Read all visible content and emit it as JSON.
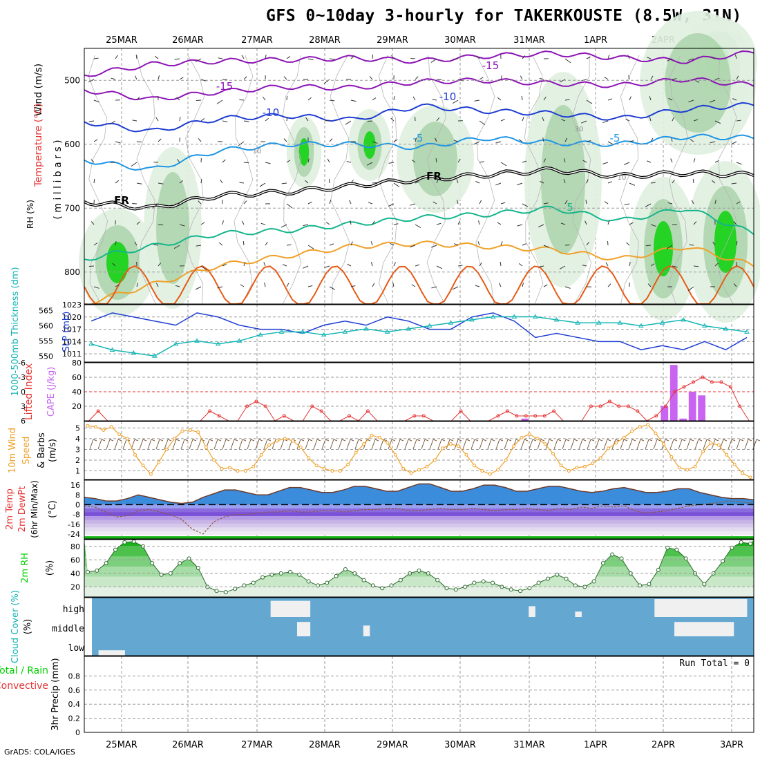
{
  "title": "GFS 0~10day 3-hourly for TAKERKOUSTE (8.5W, 31N)",
  "credit": "GrADS: COLA/IGES",
  "colors": {
    "purple": "#8c14b4",
    "blue": "#1e3cd2",
    "lightblue": "#1e96e6",
    "teal": "#14b48c",
    "orange": "#f0a028",
    "darkorange": "#e65a14",
    "rh_green": "#00d200",
    "rh_light": "#e0efe0",
    "slp": "#1e3cd2",
    "thick": "#14b4b4",
    "li": "#e63232",
    "cape": "#c864f0",
    "wind": "#f0a028",
    "temp_fill": "#3c8cdc",
    "cloud_bg": "#64a8d2"
  },
  "chart_data": [
    {
      "id": "cross_section",
      "type": "contour",
      "title": "Wind (m/s) / Temperature (°C) / RH (%)",
      "ylabel_wind": "Wind (m/s)",
      "ylabel_temp": "Temperature (°C)",
      "ylabel_rh": "RH (%)",
      "ylabel_units": "( m i l l i b a r s )",
      "yticks": [
        500,
        600,
        700,
        800
      ],
      "ylim": [
        850,
        450
      ],
      "x_dates": [
        "25MAR",
        "26MAR",
        "27MAR",
        "28MAR",
        "29MAR",
        "30MAR",
        "31MAR",
        "1APR",
        "2APR",
        "3APR"
      ],
      "contour_labels": [
        "-15",
        "-15",
        "-10",
        "-10",
        "-5",
        "-5",
        "FR",
        "FR",
        "5",
        "10",
        "30",
        "10"
      ],
      "isotherms": [
        {
          "name": "-15",
          "color": "purple",
          "p": [
            492,
            475,
            470,
            468,
            465,
            470,
            462,
            458,
            465,
            470,
            456
          ]
        },
        {
          "name": "-15b",
          "color": "purple",
          "p": [
            515,
            530,
            518,
            510,
            512,
            502,
            500,
            505,
            508,
            498,
            508
          ]
        },
        {
          "name": "-10",
          "color": "blue",
          "p": [
            565,
            580,
            560,
            555,
            562,
            540,
            548,
            552,
            560,
            545,
            538
          ]
        },
        {
          "name": "-5",
          "color": "lightblue",
          "p": [
            625,
            640,
            610,
            600,
            600,
            605,
            590,
            598,
            600,
            588,
            590
          ]
        },
        {
          "name": "FR",
          "color": "black",
          "p": [
            690,
            700,
            680,
            675,
            665,
            655,
            648,
            640,
            650,
            645,
            648
          ]
        },
        {
          "name": "5",
          "color": "teal",
          "p": [
            780,
            760,
            740,
            735,
            725,
            715,
            710,
            700,
            720,
            700,
            740
          ]
        },
        {
          "name": "10",
          "color": "orange",
          "p": [
            850,
            820,
            790,
            775,
            760,
            755,
            760,
            765,
            780,
            760,
            790
          ]
        }
      ]
    },
    {
      "id": "slp_thickness",
      "type": "line",
      "ylabel_left": "1000-500mb Thickness (dm)",
      "ylabel_right": "SLP (mb)",
      "y_left_ticks": [
        550,
        555,
        560,
        565
      ],
      "y_right_ticks": [
        1011,
        1014,
        1017,
        1020,
        1023
      ],
      "series": [
        {
          "name": "SLP",
          "color": "slp",
          "axis": "right",
          "values": [
            1019,
            1021,
            1020,
            1019,
            1018,
            1021,
            1020,
            1018,
            1017,
            1017,
            1016,
            1018,
            1019,
            1018,
            1020,
            1019,
            1017,
            1017,
            1020,
            1021,
            1019,
            1015,
            1016,
            1015,
            1014,
            1014,
            1012,
            1013,
            1012,
            1014,
            1012,
            1015
          ]
        },
        {
          "name": "Thickness",
          "color": "thick",
          "axis": "left",
          "values": [
            554,
            552,
            551,
            550,
            554,
            555,
            554,
            555,
            557,
            558,
            558,
            557,
            558,
            559,
            558,
            559,
            560,
            561,
            562,
            563,
            563,
            563,
            562,
            561,
            561,
            561,
            560,
            561,
            562,
            560,
            559,
            558
          ]
        }
      ]
    },
    {
      "id": "li_cape",
      "type": "line_bar",
      "ylabel_left": "Lifted Index",
      "ylabel_right": "CAPE (J/kg)",
      "y_left_ticks": [
        "-6",
        "-3",
        "0",
        "3",
        "6"
      ],
      "y_right_ticks": [
        20,
        40,
        60,
        80
      ],
      "li_values": [
        6,
        4,
        6,
        6,
        6,
        6,
        6,
        6,
        6,
        6,
        6,
        6,
        6,
        4,
        5,
        6,
        6,
        3,
        2,
        3,
        6,
        5,
        6,
        6,
        3,
        4,
        6,
        6,
        5,
        6,
        4,
        6,
        6,
        6,
        6,
        5,
        5,
        6,
        6,
        6,
        4,
        6,
        6,
        6,
        5,
        4,
        5,
        5,
        5,
        5,
        4,
        6,
        6,
        6,
        3,
        3,
        2,
        3,
        3,
        4,
        6,
        5,
        3,
        0,
        -1,
        -2,
        -3,
        -2,
        -2,
        -1,
        3,
        6
      ],
      "cape_bars": [
        {
          "i": 47,
          "v": 3
        },
        {
          "i": 62,
          "v": 20
        },
        {
          "i": 63,
          "v": 77
        },
        {
          "i": 64,
          "v": 3
        },
        {
          "i": 65,
          "v": 40
        },
        {
          "i": 66,
          "v": 35
        }
      ]
    },
    {
      "id": "wind10m",
      "type": "line",
      "ylabel": "10m Wind Speed & Barbs (m/s)",
      "yticks": [
        1,
        2,
        3,
        4,
        5
      ],
      "values": [
        5.2,
        5.1,
        4.8,
        5.1,
        4.4,
        4.0,
        2.5,
        1.5,
        0.7,
        1.8,
        3.0,
        4.0,
        4.7,
        4.8,
        4.6,
        3.2,
        2.0,
        1.2,
        1.3,
        1.0,
        1.0,
        1.4,
        2.5,
        3.4,
        3.8,
        4.0,
        3.8,
        3.2,
        2.2,
        1.5,
        1.2,
        1.0,
        1.0,
        1.6,
        2.7,
        3.5,
        4.3,
        4.1,
        3.6,
        2.5,
        1.2,
        0.8,
        1.1,
        1.4,
        2.0,
        3.1,
        3.5,
        3.3,
        2.5,
        1.5,
        1.0,
        0.7,
        1.1,
        2.0,
        3.3,
        4.1,
        4.4,
        4.0,
        3.5,
        2.6,
        1.5,
        1.0,
        1.3,
        1.4,
        1.7,
        2.2,
        3.1,
        3.6,
        4.1,
        4.7,
        5.1,
        5.3,
        4.5,
        3.5,
        2.3,
        1.3,
        1.1,
        1.4,
        2.8,
        3.6,
        3.4,
        2.5,
        1.6,
        0.8,
        0.4
      ]
    },
    {
      "id": "temp2m",
      "type": "area",
      "ylabel": "2m Temp 2m DewPt (6hr Min/Max) (°C)",
      "yticks": [
        16,
        8,
        0,
        -8,
        -16,
        -24
      ],
      "temp": [
        6,
        5,
        3,
        3,
        5,
        8,
        6,
        4,
        2,
        1,
        2,
        6,
        9,
        12,
        12,
        10,
        8,
        8,
        11,
        14,
        14,
        12,
        10,
        10,
        12,
        15,
        15,
        13,
        11,
        11,
        14,
        17,
        17,
        14,
        11,
        11,
        13,
        16,
        16,
        14,
        11,
        11,
        13,
        15,
        15,
        13,
        11,
        10,
        11,
        13,
        14,
        12,
        10,
        10,
        11,
        13,
        13,
        10,
        8,
        6,
        5,
        5,
        4
      ],
      "dewpt": [
        -1,
        -2,
        -6,
        -10,
        -9,
        -5,
        -4,
        -6,
        -8,
        -12,
        -20,
        -24,
        -14,
        -10,
        -8,
        -8,
        -7,
        -6,
        -6,
        -5,
        -6,
        -6,
        -5,
        -5,
        -6,
        -5,
        -4,
        -4,
        -3,
        -3,
        -5,
        -5,
        -4,
        -3,
        -4,
        -4,
        -3,
        -4,
        -5,
        -4,
        -4,
        -3,
        -4,
        -5,
        -3,
        -4,
        -2,
        -3,
        -1,
        -2,
        -1,
        -5,
        -7,
        -6,
        -5,
        -3,
        -1,
        0,
        1,
        2,
        3,
        2,
        1
      ]
    },
    {
      "id": "rh2m",
      "type": "area",
      "ylabel": "2m RH (%)",
      "yticks": [
        20,
        40,
        60,
        80
      ],
      "values": [
        42,
        44,
        55,
        75,
        86,
        87,
        80,
        55,
        38,
        40,
        55,
        62,
        48,
        20,
        14,
        12,
        17,
        22,
        26,
        34,
        38,
        40,
        42,
        38,
        28,
        22,
        26,
        36,
        46,
        40,
        30,
        22,
        18,
        22,
        30,
        40,
        44,
        40,
        30,
        18,
        16,
        20,
        26,
        28,
        26,
        20,
        16,
        14,
        18,
        26,
        32,
        38,
        32,
        22,
        20,
        28,
        55,
        68,
        62,
        40,
        22,
        24,
        45,
        78,
        75,
        62,
        40,
        24,
        40,
        58,
        78,
        86,
        84
      ]
    },
    {
      "id": "cloud",
      "type": "heatmap",
      "ylabel": "Cloud Cover (%)",
      "levels": [
        "high",
        "middle",
        "low"
      ],
      "blocks": [
        {
          "level": "high",
          "start": 27,
          "end": 33,
          "h": 0.9
        },
        {
          "level": "middle",
          "start": 31,
          "end": 33,
          "h": 0.8
        },
        {
          "level": "middle",
          "start": 41,
          "end": 42,
          "h": 0.6
        },
        {
          "level": "high",
          "start": 66,
          "end": 67,
          "h": 0.6
        },
        {
          "level": "high",
          "start": 73,
          "end": 74,
          "h": 0.3
        },
        {
          "level": "high",
          "start": 85,
          "end": 99,
          "h": 1.0
        },
        {
          "level": "middle",
          "start": 88,
          "end": 97,
          "h": 0.8
        },
        {
          "level": "low",
          "start": 1,
          "end": 5,
          "h": 0.3
        }
      ]
    },
    {
      "id": "precip",
      "type": "bar",
      "ylabel": "3hr Precip (mm)",
      "legend_total": "Total / Rain",
      "legend_conv": "Convective",
      "yticks": [
        "0",
        "0.2",
        "0.4",
        "0.6",
        "0.8"
      ],
      "run_total": "Run Total = 0"
    }
  ]
}
